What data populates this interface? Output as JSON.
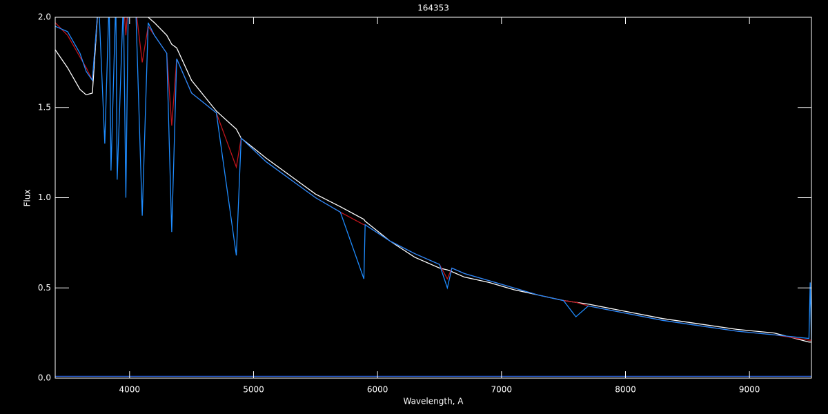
{
  "chart_data": {
    "type": "line",
    "title": "164353",
    "x_label": "Wavelength, A",
    "y_label": "Flux",
    "x": [
      3400,
      3500,
      3600,
      3650,
      3700,
      3750,
      3800,
      3835,
      3850,
      3889,
      3900,
      3950,
      3970,
      3990,
      4050,
      4102,
      4150,
      4200,
      4300,
      4340,
      4380,
      4500,
      4700,
      4861,
      4900,
      5100,
      5300,
      5500,
      5700,
      5890,
      5900,
      6100,
      6300,
      6500,
      6563,
      6600,
      6700,
      6900,
      7100,
      7300,
      7500,
      7600,
      7700,
      8000,
      8300,
      8600,
      8900,
      9200,
      9480,
      9490,
      9500
    ],
    "series": [
      {
        "color": "#ffffff",
        "values": [
          1.82,
          1.72,
          1.6,
          1.57,
          1.58,
          2.1,
          2.1,
          2.1,
          2.1,
          2.1,
          2.1,
          2.1,
          2.1,
          2.1,
          2.1,
          2.05,
          2.0,
          1.97,
          1.9,
          1.85,
          1.83,
          1.65,
          1.48,
          1.38,
          1.33,
          1.22,
          1.12,
          1.02,
          0.95,
          0.88,
          0.87,
          0.76,
          0.67,
          0.61,
          0.6,
          0.59,
          0.56,
          0.53,
          0.49,
          0.46,
          0.43,
          0.42,
          0.41,
          0.37,
          0.33,
          0.3,
          0.27,
          0.25,
          0.2,
          0.2,
          0.2
        ]
      },
      {
        "color": "#c0141c",
        "values": [
          1.97,
          1.9,
          1.78,
          1.72,
          1.65,
          2.1,
          2.1,
          2.1,
          2.1,
          2.1,
          2.1,
          2.1,
          1.9,
          2.1,
          2.05,
          1.75,
          1.95,
          1.9,
          1.8,
          1.4,
          1.77,
          1.58,
          1.47,
          1.17,
          1.33,
          1.2,
          1.1,
          1.0,
          0.92,
          0.85,
          0.85,
          0.76,
          0.69,
          0.63,
          0.55,
          0.61,
          0.58,
          0.54,
          0.5,
          0.46,
          0.43,
          0.42,
          0.4,
          0.36,
          0.32,
          0.29,
          0.26,
          0.24,
          0.21,
          0.21,
          0.21
        ]
      },
      {
        "color": "#1e8cff",
        "values": [
          1.95,
          1.92,
          1.8,
          1.7,
          1.65,
          2.1,
          1.3,
          2.1,
          1.15,
          2.1,
          1.1,
          2.1,
          1.0,
          2.1,
          2.05,
          0.9,
          1.97,
          1.9,
          1.8,
          0.81,
          1.77,
          1.58,
          1.47,
          0.68,
          1.33,
          1.2,
          1.1,
          1.0,
          0.92,
          0.55,
          0.85,
          0.76,
          0.69,
          0.63,
          0.5,
          0.61,
          0.58,
          0.54,
          0.5,
          0.46,
          0.43,
          0.34,
          0.4,
          0.36,
          0.32,
          0.29,
          0.26,
          0.24,
          0.22,
          0.53,
          0.21
        ]
      },
      {
        "color": "#2a5fd8",
        "values": [
          0.01,
          0.01,
          0.01,
          0.01,
          0.01,
          0.01,
          0.01,
          0.01,
          0.01,
          0.01,
          0.01,
          0.01,
          0.01,
          0.01,
          0.01,
          0.01,
          0.01,
          0.01,
          0.01,
          0.01,
          0.01,
          0.01,
          0.01,
          0.01,
          0.01,
          0.01,
          0.01,
          0.01,
          0.01,
          0.01,
          0.01,
          0.01,
          0.01,
          0.01,
          0.01,
          0.01,
          0.01,
          0.01,
          0.01,
          0.01,
          0.01,
          0.01,
          0.01,
          0.01,
          0.01,
          0.01,
          0.01,
          0.01,
          0.01,
          0.01,
          0.01
        ]
      }
    ],
    "xlim": [
      3400,
      9500
    ],
    "ylim": [
      0,
      2
    ],
    "xticks": [
      4000,
      5000,
      6000,
      7000,
      8000,
      9000
    ],
    "yticks": [
      {
        "value": 0,
        "label": "0.0"
      },
      {
        "value": 0.5,
        "label": "0.5"
      },
      {
        "value": 1,
        "label": "1.0"
      },
      {
        "value": 1.5,
        "label": "1.5"
      },
      {
        "value": 2,
        "label": "2.0"
      }
    ]
  }
}
